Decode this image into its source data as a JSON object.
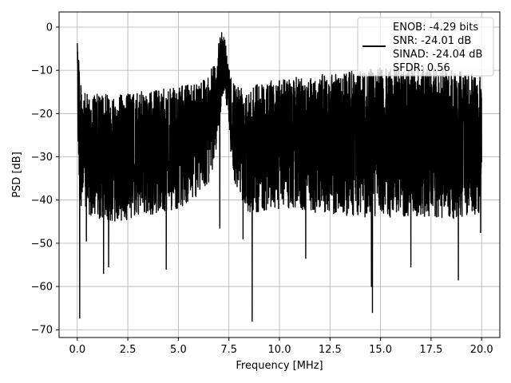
{
  "chart_data": {
    "type": "line",
    "xlabel": "Frequency [MHz]",
    "ylabel": "PSD [dB]",
    "xlim": [
      -0.9,
      20.9
    ],
    "ylim": [
      -71.8,
      3.5
    ],
    "xticks": [
      0.0,
      2.5,
      5.0,
      7.5,
      10.0,
      12.5,
      15.0,
      17.5,
      20.0
    ],
    "xtick_labels": [
      "0.0",
      "2.5",
      "5.0",
      "7.5",
      "10.0",
      "12.5",
      "15.0",
      "17.5",
      "20.0"
    ],
    "yticks": [
      0,
      -10,
      -20,
      -30,
      -40,
      -50,
      -60,
      -70
    ],
    "ytick_labels": [
      "0",
      "−10",
      "−20",
      "−30",
      "−40",
      "−50",
      "−60",
      "−70"
    ],
    "grid": true,
    "legend_position": "top-right",
    "line_color": "#000000",
    "grid_color": "#b0b0b0",
    "series": [
      {
        "legend": [
          "ENOB: -4.29 bits",
          "SNR: -24.01 dB",
          "SINAD: -24.04 dB",
          "SFDR: 0.56"
        ],
        "envelope": {
          "x": [
            0.0,
            0.05,
            0.15,
            0.4,
            1.0,
            2.0,
            3.0,
            4.0,
            5.0,
            6.0,
            6.5,
            6.8,
            7.0,
            7.15,
            7.3,
            7.5,
            7.8,
            8.5,
            10.0,
            12.0,
            14.0,
            16.0,
            18.0,
            20.0
          ],
          "upper": [
            -2.0,
            -1.0,
            -13.0,
            -15.5,
            -15.5,
            -15.5,
            -15.0,
            -14.5,
            -14.0,
            -12.0,
            -11.0,
            -8.0,
            -3.5,
            -0.8,
            -2.5,
            -9.0,
            -13.0,
            -13.0,
            -12.0,
            -11.0,
            -10.0,
            -9.0,
            -9.5,
            -11.0
          ],
          "lower": [
            -4.0,
            -33.0,
            -41.0,
            -43.0,
            -45.0,
            -45.0,
            -44.0,
            -43.0,
            -42.0,
            -39.0,
            -36.0,
            -31.0,
            -24.0,
            -17.0,
            -14.0,
            -25.0,
            -37.0,
            -43.0,
            -42.0,
            -43.0,
            -44.0,
            -44.0,
            -45.0,
            -43.0
          ]
        },
        "deep_dips": [
          {
            "x": 0.12,
            "y": -67.3
          },
          {
            "x": 0.45,
            "y": -49.5
          },
          {
            "x": 1.3,
            "y": -57.0
          },
          {
            "x": 1.55,
            "y": -55.5
          },
          {
            "x": 4.4,
            "y": -56.0
          },
          {
            "x": 7.05,
            "y": -46.5
          },
          {
            "x": 8.2,
            "y": -49.0
          },
          {
            "x": 8.65,
            "y": -68.0
          },
          {
            "x": 11.3,
            "y": -53.5
          },
          {
            "x": 14.55,
            "y": -60.0
          },
          {
            "x": 14.6,
            "y": -66.0
          },
          {
            "x": 16.5,
            "y": -55.5
          },
          {
            "x": 18.85,
            "y": -58.5
          },
          {
            "x": 19.95,
            "y": -47.5
          }
        ]
      }
    ]
  }
}
